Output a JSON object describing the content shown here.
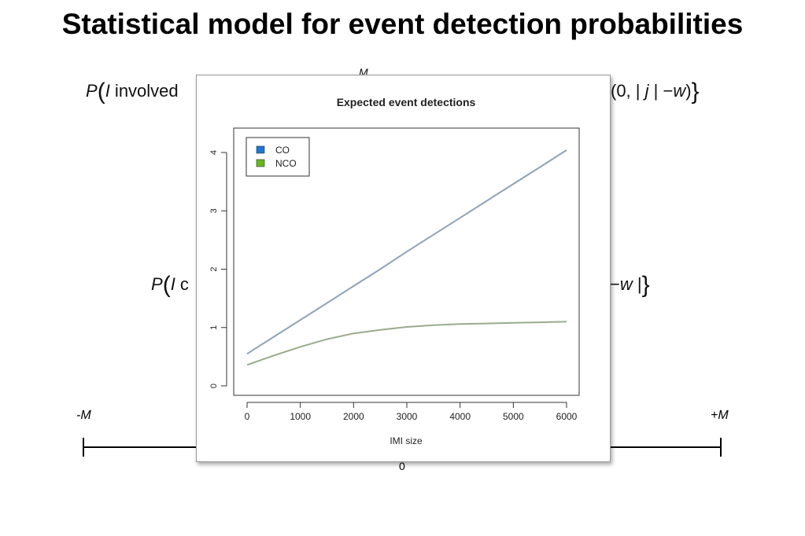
{
  "slide": {
    "title": "Statistical model for event detection probabilities",
    "formula_top": {
      "left_P": "P",
      "left_I": "I",
      "left_text": " involved",
      "sup_M": "M",
      "right_text": "(0,  | ",
      "right_j": "j",
      "right_mid": " | −",
      "right_w": "w",
      "right_close": ")"
    },
    "formula_mid": {
      "left_P": "P",
      "left_I": "I",
      "left_text": " c",
      "right_text": "−",
      "right_w": "w",
      "right_close": " |"
    },
    "number_line": {
      "left_label": "-M",
      "right_label": "+M",
      "center_label": "0"
    }
  },
  "chart_data": {
    "type": "line",
    "title": "Expected event detections",
    "xlabel": "IMI size",
    "ylabel": "",
    "xlim": [
      0,
      6000
    ],
    "ylim": [
      0,
      4
    ],
    "x_ticks": [
      0,
      1000,
      2000,
      3000,
      4000,
      5000,
      6000
    ],
    "y_ticks": [
      0,
      1,
      2,
      3,
      4
    ],
    "grid": false,
    "legend_position": "top-left",
    "x": [
      0,
      500,
      1000,
      1500,
      2000,
      2500,
      3000,
      3500,
      4000,
      4500,
      5000,
      5500,
      6000
    ],
    "series": [
      {
        "name": "CO",
        "color": "#8fa3b8",
        "legend_color": "#1f77d4",
        "values": [
          0.55,
          0.84,
          1.13,
          1.42,
          1.71,
          2.0,
          2.3,
          2.59,
          2.88,
          3.17,
          3.46,
          3.75,
          4.04
        ]
      },
      {
        "name": "NCO",
        "color": "#9aab8c",
        "legend_color": "#66b81e",
        "values": [
          0.36,
          0.52,
          0.67,
          0.8,
          0.9,
          0.96,
          1.01,
          1.04,
          1.06,
          1.07,
          1.08,
          1.09,
          1.1
        ]
      }
    ]
  }
}
